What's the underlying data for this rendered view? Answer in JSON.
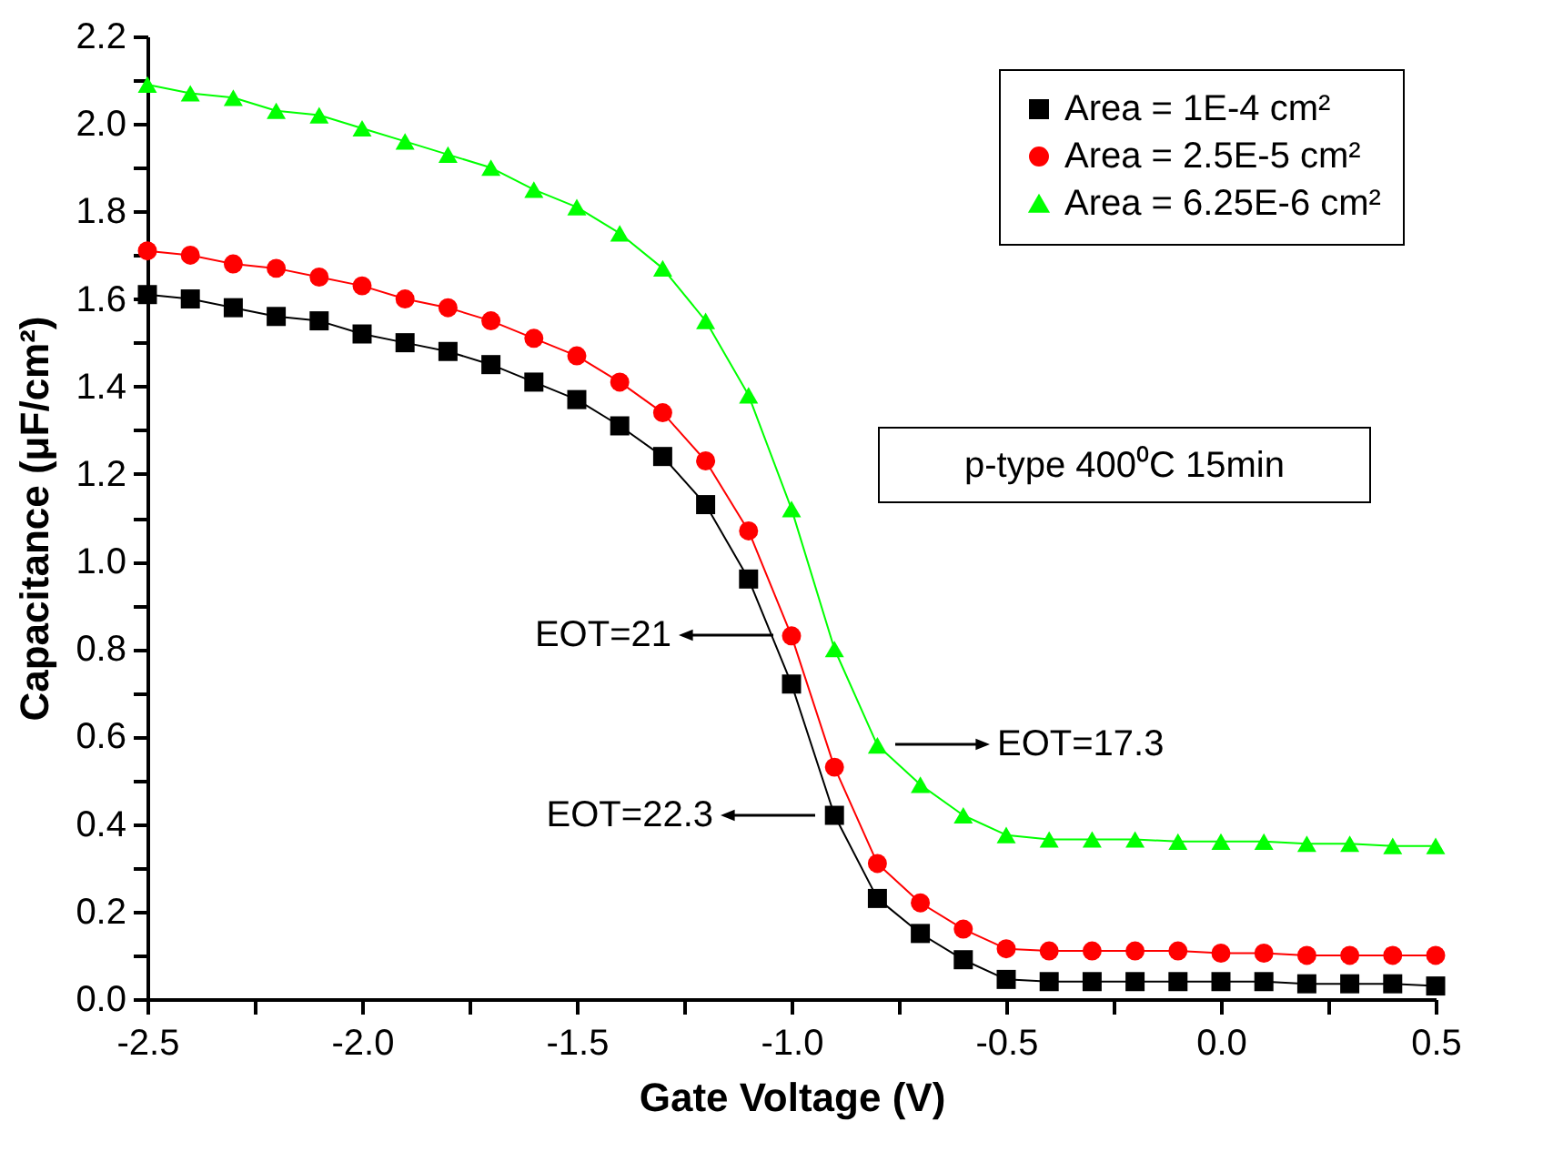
{
  "chart_data": {
    "type": "line",
    "xlabel": "Gate Voltage (V)",
    "ylabel": "Capacitance (μF/cm²)",
    "x": [
      -2.5,
      -2.4,
      -2.3,
      -2.2,
      -2.1,
      -2.0,
      -1.9,
      -1.8,
      -1.7,
      -1.6,
      -1.5,
      -1.4,
      -1.3,
      -1.2,
      -1.1,
      -1.0,
      -0.9,
      -0.8,
      -0.7,
      -0.6,
      -0.5,
      -0.4,
      -0.3,
      -0.2,
      -0.1,
      0.0,
      0.1,
      0.2,
      0.3,
      0.4,
      0.5
    ],
    "series": [
      {
        "name": "Area = 1E-4 cm²",
        "color": "#000000",
        "marker": "square",
        "values": [
          1.61,
          1.6,
          1.58,
          1.56,
          1.55,
          1.52,
          1.5,
          1.48,
          1.45,
          1.41,
          1.37,
          1.31,
          1.24,
          1.13,
          0.96,
          0.72,
          0.42,
          0.23,
          0.15,
          0.09,
          0.045,
          0.04,
          0.04,
          0.04,
          0.04,
          0.04,
          0.04,
          0.035,
          0.035,
          0.035,
          0.03
        ]
      },
      {
        "name": "Area = 2.5E-5 cm²",
        "color": "#ff0000",
        "marker": "circle",
        "values": [
          1.71,
          1.7,
          1.68,
          1.67,
          1.65,
          1.63,
          1.6,
          1.58,
          1.55,
          1.51,
          1.47,
          1.41,
          1.34,
          1.23,
          1.07,
          0.83,
          0.53,
          0.31,
          0.22,
          0.16,
          0.115,
          0.11,
          0.11,
          0.11,
          0.11,
          0.105,
          0.105,
          0.1,
          0.1,
          0.1,
          0.1
        ]
      },
      {
        "name": "Area = 6.25E-6 cm²",
        "color": "#00ff00",
        "marker": "triangle",
        "values": [
          2.09,
          2.07,
          2.06,
          2.03,
          2.02,
          1.99,
          1.96,
          1.93,
          1.9,
          1.85,
          1.81,
          1.75,
          1.67,
          1.55,
          1.38,
          1.12,
          0.8,
          0.58,
          0.49,
          0.42,
          0.375,
          0.365,
          0.365,
          0.365,
          0.36,
          0.36,
          0.36,
          0.355,
          0.355,
          0.35,
          0.35
        ]
      }
    ],
    "xlim": [
      -2.5,
      0.5
    ],
    "xticks": [
      -2.5,
      {
        "value": -2.25,
        "label": null
      },
      {
        "value": -2,
        "label": "-2.0"
      },
      {
        "value": -1.75,
        "label": null
      },
      -1.5,
      {
        "value": -1.25,
        "label": null
      },
      {
        "value": -1,
        "label": "-1.0"
      },
      {
        "value": -0.75,
        "label": null
      },
      -0.5,
      {
        "value": -0.25,
        "label": null
      },
      {
        "value": 0,
        "label": "0.0"
      },
      {
        "value": 0.25,
        "label": null
      },
      0.5
    ],
    "ylim": [
      0,
      2.2
    ],
    "yticks": [
      {
        "value": 0,
        "label": "0.0"
      },
      {
        "value": 0.1,
        "label": null
      },
      0.2,
      {
        "value": 0.3,
        "label": null
      },
      0.4,
      {
        "value": 0.5,
        "label": null
      },
      0.6,
      {
        "value": 0.7,
        "label": null
      },
      0.8,
      {
        "value": 0.9,
        "label": null
      },
      {
        "value": 1,
        "label": "1.0"
      },
      {
        "value": 1.1,
        "label": null
      },
      1.2,
      {
        "value": 1.3,
        "label": null
      },
      1.4,
      {
        "value": 1.5,
        "label": null
      },
      1.6,
      {
        "value": 1.7,
        "label": null
      },
      1.8,
      {
        "value": 1.9,
        "label": null
      },
      {
        "value": 2,
        "label": "2.0"
      },
      {
        "value": 2.1,
        "label": null
      },
      2.2
    ],
    "legend": "top right",
    "grid": false,
    "line_style": "solid",
    "annotations": [
      "EOT=21",
      "EOT=22.3",
      "EOT=17.3",
      "p-type 400⁰C 15min"
    ]
  }
}
